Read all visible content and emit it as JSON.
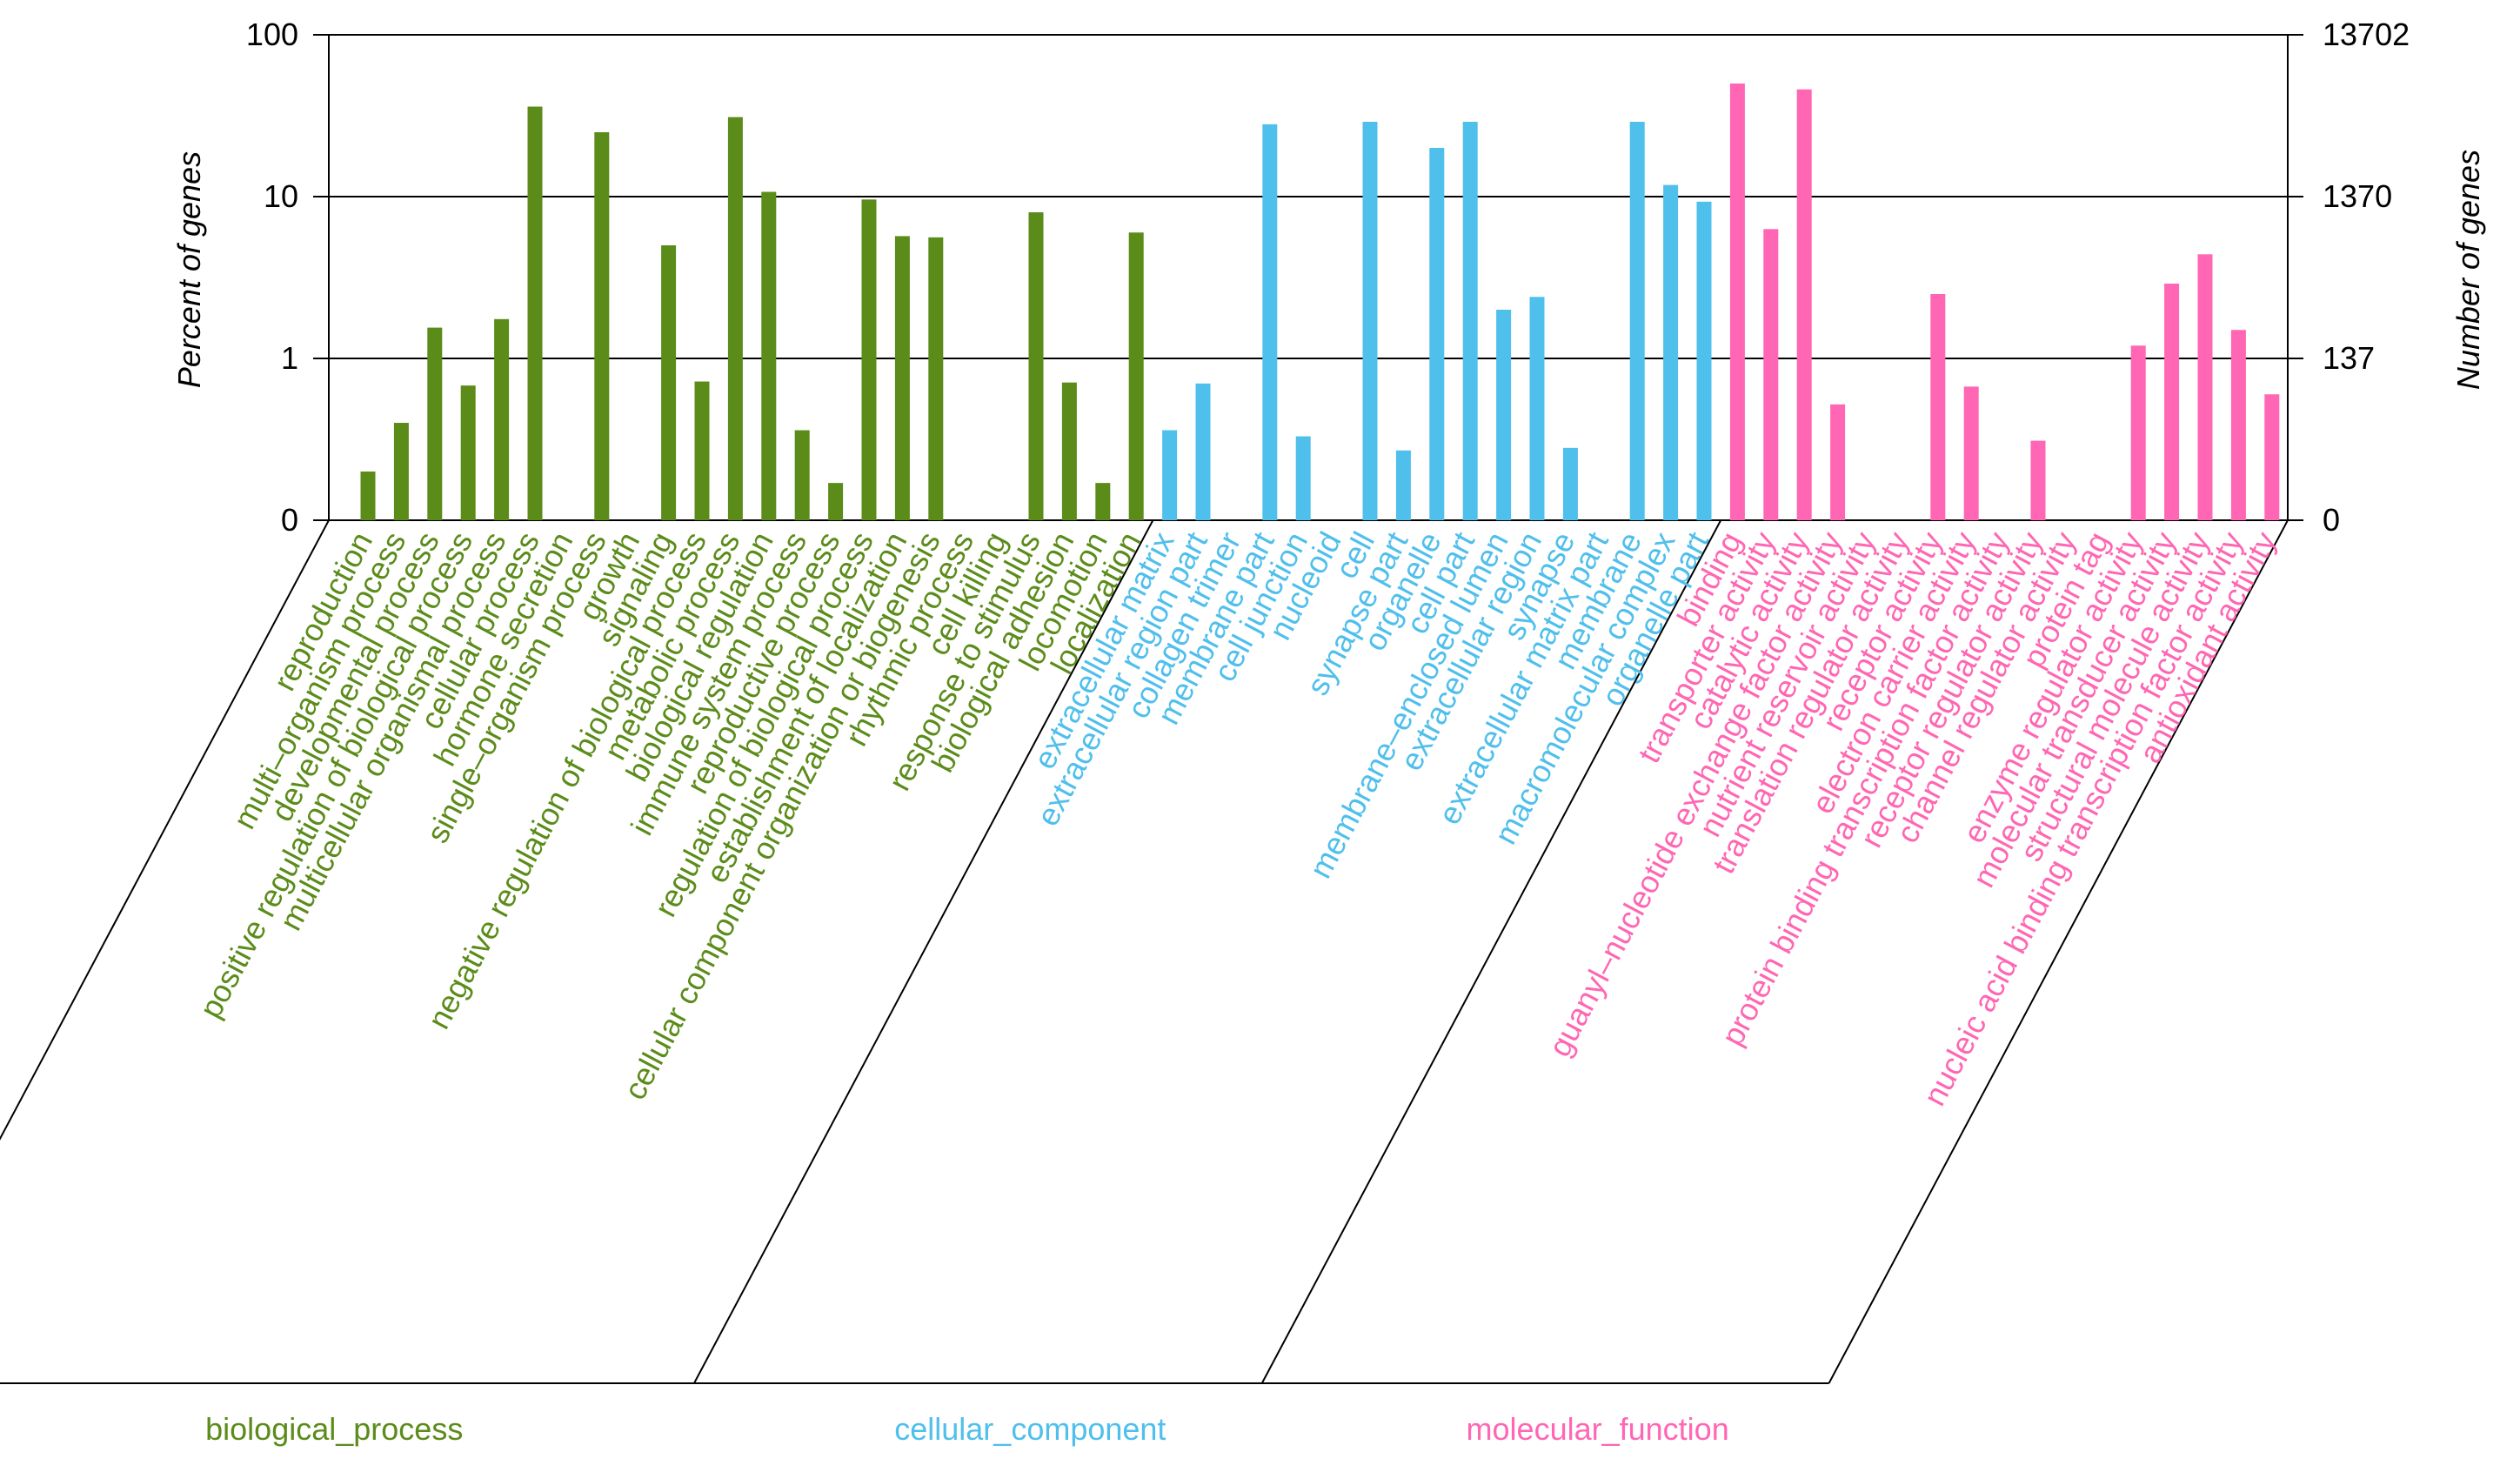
{
  "chart_data": {
    "type": "bar",
    "title": "",
    "ylabel_left": "Percent of genes",
    "ylabel_right": "Number of genes",
    "y_scale": "log",
    "grid": "horizontal at 1, 10, 100",
    "left_ticks": [
      "0",
      "1",
      "10",
      "100"
    ],
    "right_ticks": [
      "0",
      "137",
      "1370",
      "13702"
    ],
    "colors": {
      "biological_process": "#5b8c1a",
      "cellular_component": "#4fbfec",
      "molecular_function": "#ff66b3"
    },
    "groups": [
      {
        "name": "biological_process",
        "label": "biological_process",
        "categories": [
          "reproduction",
          "multi–organism process",
          "developmental process",
          "positive regulation of biological process",
          "multicellular organismal process",
          "cellular process",
          "hormone secretion",
          "single–organism process",
          "growth",
          "signaling",
          "negative regulation of biological process",
          "metabolic process",
          "biological regulation",
          "immune system process",
          "reproductive process",
          "regulation of biological process",
          "establishment of localization",
          "cellular component organization or biogenesis",
          "rhythmic process",
          "cell killing",
          "response to stimulus",
          "biological adhesion",
          "locomotion",
          "localization"
        ],
        "values": [
          0.2,
          0.4,
          1.55,
          0.68,
          1.75,
          36,
          0,
          25,
          0,
          5,
          0.72,
          31,
          10.7,
          0.36,
          0.17,
          9.6,
          5.7,
          5.6,
          0,
          0,
          8,
          0.71,
          0.17,
          6
        ]
      },
      {
        "name": "cellular_component",
        "label": "cellular_component",
        "categories": [
          "extracellular matrix",
          "extracellular region part",
          "collagen trimer",
          "membrane part",
          "cell junction",
          "nucleoid",
          "cell",
          "synapse part",
          "organelle",
          "cell part",
          "membrane–enclosed lumen",
          "extracellular region",
          "synapse",
          "extracellular matrix part",
          "membrane",
          "macromolecular complex",
          "organelle part"
        ],
        "values": [
          0.36,
          0.7,
          0,
          28,
          0.33,
          0,
          29,
          0.27,
          20,
          29,
          2,
          2.4,
          0.28,
          0,
          29,
          11.8,
          9.3
        ]
      },
      {
        "name": "molecular_function",
        "label": "molecular_function",
        "categories": [
          "binding",
          "transporter activity",
          "catalytic activity",
          "guanyl–nucleotide exchange factor activity",
          "nutrient reservoir activity",
          "translation regulator activity",
          "receptor activity",
          "electron carrier activity",
          "protein binding transcription factor activity",
          "receptor regulator activity",
          "channel regulator activity",
          "protein tag",
          "enzyme regulator activity",
          "molecular transducer activity",
          "structural molecule activity",
          "nucleic acid binding transcription factor activity",
          "antioxidant activity"
        ],
        "values": [
          50,
          6.3,
          46,
          0.52,
          0,
          0,
          2.5,
          0.67,
          0,
          0.31,
          0,
          0,
          1.2,
          2.9,
          4.4,
          1.5,
          0.6
        ]
      }
    ]
  }
}
